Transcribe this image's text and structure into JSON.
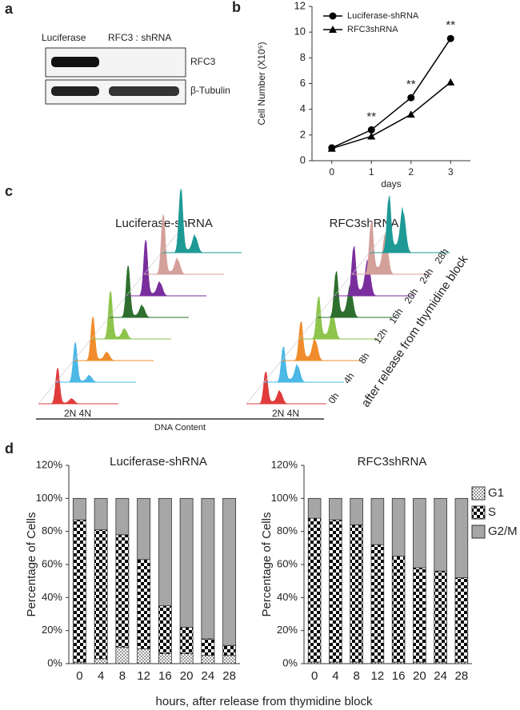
{
  "panel_labels": [
    "a",
    "b",
    "c",
    "d"
  ],
  "panel_a": {
    "lanes": [
      "Luciferase",
      "RFC3 : shRNA"
    ],
    "bands": [
      "RFC3",
      "β-Tubulin"
    ]
  },
  "panel_c": {
    "titles": [
      "Luciferase-shRNA",
      "RFC3shRNA"
    ],
    "ploidy": [
      "2N 4N",
      "2N 4N"
    ],
    "xlabel": "DNA Content",
    "times": [
      "0h",
      "4h",
      "8h",
      "12h",
      "16h",
      "20h",
      "24h",
      "28h"
    ],
    "times_caption": "after release from thymidine block",
    "colors": [
      "#e03c3c",
      "#4bb8e6",
      "#f08c2c",
      "#8cc44c",
      "#2e6e2e",
      "#7a2e9e",
      "#d4a09a",
      "#1e9a96"
    ]
  },
  "panel_d": {
    "xlabel": "hours, after release from thymidine block"
  },
  "chart_data": [
    {
      "type": "line",
      "xlabel": "days",
      "ylabel": "Cell Number (X10⁵)",
      "x": [
        0,
        1,
        2,
        3
      ],
      "xlim": [
        -0.5,
        3.5
      ],
      "xticks": [
        0,
        1,
        2,
        3
      ],
      "ylim": [
        0,
        12
      ],
      "yticks": [
        0,
        2,
        4,
        6,
        8,
        10,
        12
      ],
      "series": [
        {
          "name": "Luciferase-shRNA",
          "color": "#000000",
          "marker": "circle",
          "values": [
            1,
            2.4,
            4.9,
            9.5
          ]
        },
        {
          "name": "RFC3shRNA",
          "color": "#000000",
          "marker": "triangle",
          "values": [
            0.95,
            1.9,
            3.6,
            6.1
          ]
        }
      ],
      "annotations": [
        {
          "text": "**",
          "x": 1
        },
        {
          "text": "**",
          "x": 2
        },
        {
          "text": "**",
          "x": 3
        }
      ],
      "legend": "upper left"
    },
    {
      "type": "bar",
      "stacked": true,
      "title": "Luciferase-shRNA",
      "ylabel": "Percentage of Cells",
      "categories": [
        "0",
        "4",
        "8",
        "12",
        "16",
        "20",
        "24",
        "28"
      ],
      "ylim": [
        0,
        120
      ],
      "yticks": [
        {
          "value": 0,
          "label": "0%"
        },
        {
          "value": 20,
          "label": "20%"
        },
        {
          "value": 40,
          "label": "40%"
        },
        {
          "value": 60,
          "label": "60%"
        },
        {
          "value": 80,
          "label": "80%"
        },
        {
          "value": 100,
          "label": "100%"
        },
        {
          "value": 120,
          "label": "120%"
        }
      ],
      "series": [
        {
          "name": "G1",
          "color": "#ffffff",
          "pattern": "dots",
          "values": [
            1,
            3,
            10,
            9,
            6,
            6,
            5,
            5
          ]
        },
        {
          "name": "S",
          "color": "#000000",
          "pattern": "checker",
          "values": [
            86,
            78,
            68,
            54,
            29,
            16,
            10,
            6
          ]
        },
        {
          "name": "G2/M",
          "color": "#a6a6a6",
          "values": [
            13,
            19,
            22,
            37,
            65,
            78,
            85,
            89
          ]
        }
      ],
      "legend": false
    },
    {
      "type": "bar",
      "stacked": true,
      "title": "RFC3shRNA",
      "ylabel": "Percentage of Cells",
      "categories": [
        "0",
        "4",
        "8",
        "12",
        "16",
        "20",
        "24",
        "28"
      ],
      "ylim": [
        0,
        120
      ],
      "yticks": [
        {
          "value": 0,
          "label": "0%"
        },
        {
          "value": 20,
          "label": "20%"
        },
        {
          "value": 40,
          "label": "40%"
        },
        {
          "value": 60,
          "label": "60%"
        },
        {
          "value": 80,
          "label": "80%"
        },
        {
          "value": 100,
          "label": "100%"
        },
        {
          "value": 120,
          "label": "120%"
        }
      ],
      "series": [
        {
          "name": "G1",
          "color": "#ffffff",
          "pattern": "dots",
          "values": [
            1,
            1,
            1,
            1,
            1,
            1,
            1,
            1
          ]
        },
        {
          "name": "S",
          "color": "#000000",
          "pattern": "checker",
          "values": [
            87,
            86,
            83,
            71,
            64,
            57,
            55,
            51
          ]
        },
        {
          "name": "G2/M",
          "color": "#a6a6a6",
          "values": [
            12,
            13,
            16,
            28,
            35,
            42,
            44,
            48
          ]
        }
      ],
      "legend": "right"
    }
  ]
}
